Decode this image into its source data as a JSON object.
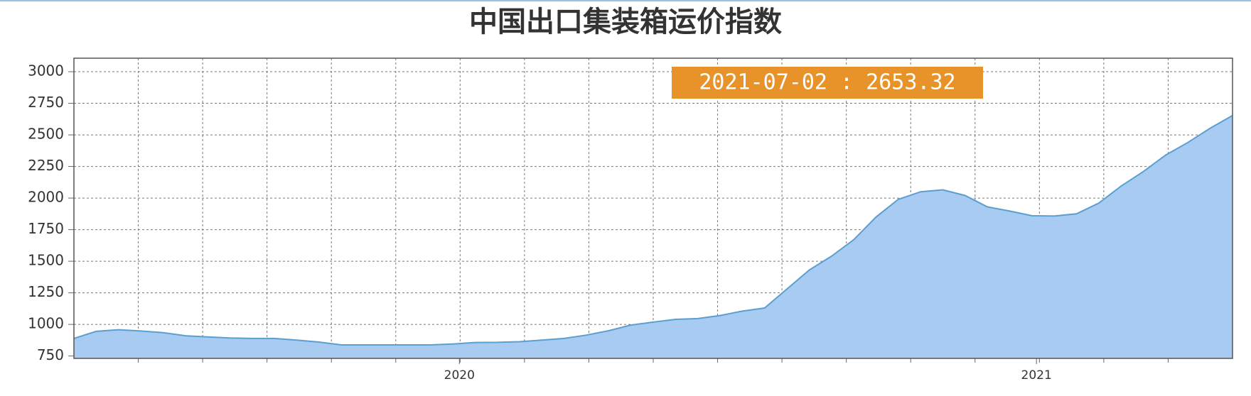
{
  "chart_data": {
    "type": "area",
    "title": "中国出口集装箱运价指数",
    "values": [
      889,
      945,
      958,
      948,
      935,
      910,
      901,
      892,
      889,
      889,
      876,
      860,
      838,
      838,
      838,
      838,
      838,
      845,
      857,
      858,
      863,
      876,
      889,
      915,
      950,
      995,
      1018,
      1040,
      1046,
      1070,
      1105,
      1130,
      1280,
      1430,
      1540,
      1670,
      1850,
      1990,
      2050,
      2065,
      2020,
      1930,
      1897,
      1860,
      1858,
      1875,
      1960,
      2095,
      2210,
      2340,
      2440,
      2553,
      2653.32
    ],
    "color": "#a8cbf2",
    "line_color": "#5a9fd0",
    "ylim": [
      731,
      3107
    ],
    "yticks": [
      750,
      1000,
      1250,
      1500,
      1750,
      2000,
      2250,
      2500,
      2750,
      3000
    ],
    "xticks": [
      {
        "value": 17.3,
        "label": "2020"
      },
      {
        "value": 43.2,
        "label": "2021"
      }
    ],
    "grid": true,
    "tooltip": "2021-07-02 : 2653.32"
  }
}
